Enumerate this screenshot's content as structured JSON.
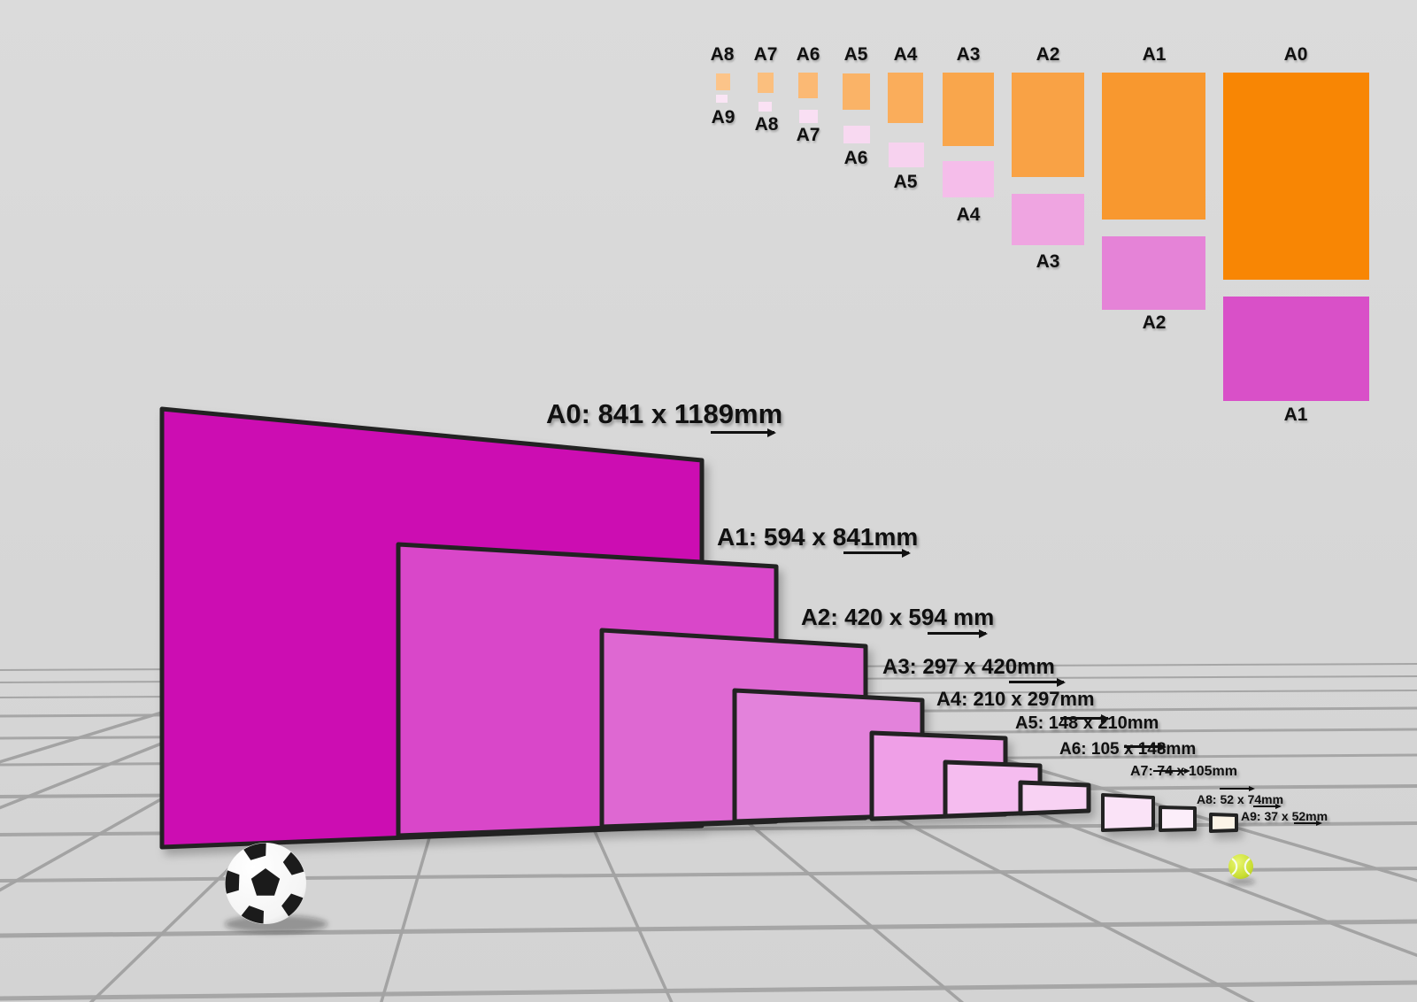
{
  "scene": {
    "background": "#d6d6d6",
    "grid_line_color": "#9f9f9f",
    "paper_border_color": "#242424"
  },
  "mini_chart": {
    "columns": [
      {
        "portrait_label": "A8",
        "portrait_color": "#fcc489",
        "landscape_label": "A9",
        "landscape_color": "#fae5f5"
      },
      {
        "portrait_label": "A7",
        "portrait_color": "#fbbf7e",
        "landscape_label": "A8",
        "landscape_color": "#fae2f4"
      },
      {
        "portrait_label": "A6",
        "portrait_color": "#fbb974",
        "landscape_label": "A7",
        "landscape_color": "#f9dff3"
      },
      {
        "portrait_label": "A5",
        "portrait_color": "#fab367",
        "landscape_label": "A6",
        "landscape_color": "#f8d9f1"
      },
      {
        "portrait_label": "A4",
        "portrait_color": "#faad5b",
        "landscape_label": "A5",
        "landscape_color": "#f7d2ef"
      },
      {
        "portrait_label": "A3",
        "portrait_color": "#f9a64c",
        "landscape_label": "A4",
        "landscape_color": "#f5bdea"
      },
      {
        "portrait_label": "A2",
        "portrait_color": "#f9a245",
        "landscape_label": "A3",
        "landscape_color": "#efa5e1"
      },
      {
        "portrait_label": "A1",
        "portrait_color": "#f8982f",
        "landscape_label": "A2",
        "landscape_color": "#e583d7"
      },
      {
        "portrait_label": "A0",
        "portrait_color": "#f88604",
        "landscape_label": "A1",
        "landscape_color": "#d950c8"
      }
    ]
  },
  "papers": [
    {
      "name": "A0",
      "label": "A0: 841 x 1189mm",
      "color": "#cc0db2"
    },
    {
      "name": "A1",
      "label": "A1: 594 x 841mm",
      "color": "#d947c9"
    },
    {
      "name": "A2",
      "label": "A2: 420 x 594 mm",
      "color": "#de68d2"
    },
    {
      "name": "A3",
      "label": "A3: 297 x 420mm",
      "color": "#e382db"
    },
    {
      "name": "A4",
      "label": "A4: 210 x 297mm",
      "color": "#ef9fe7"
    },
    {
      "name": "A5",
      "label": "A5: 148 x 210mm",
      "color": "#f5bcef"
    },
    {
      "name": "A6",
      "label": "A6: 105 x 148mm",
      "color": "#f8d2f3"
    },
    {
      "name": "A7",
      "label": "A7: 74 x 105mm",
      "color": "#fae3f7"
    },
    {
      "name": "A8",
      "label": "A8: 52 x 74mm",
      "color": "#fceefa"
    },
    {
      "name": "A9",
      "label": "A9: 37 x 52mm",
      "color": "#fcf4e7"
    }
  ],
  "objects": {
    "soccer_ball_color": "#ffffff",
    "soccer_ball_patch_color": "#1b1b1b",
    "tennis_ball_color": "#c9de33"
  }
}
